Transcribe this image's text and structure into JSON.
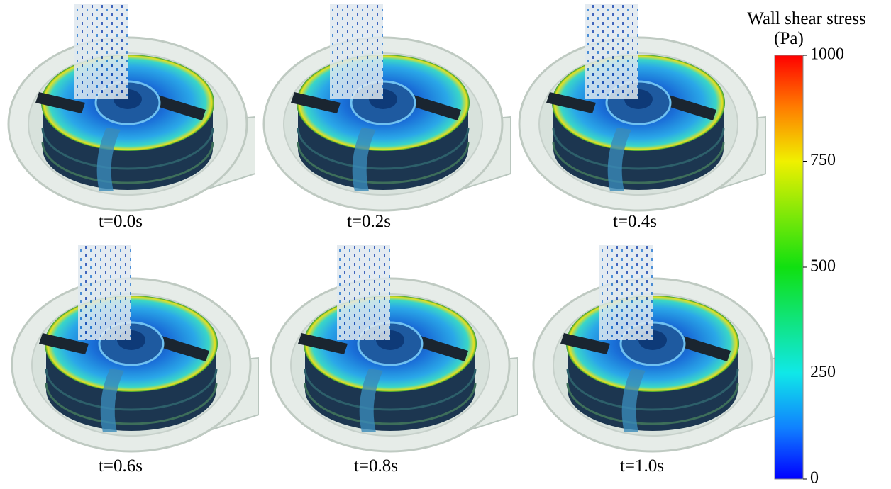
{
  "panels": [
    {
      "label": "t=0.0s"
    },
    {
      "label": "t=0.2s"
    },
    {
      "label": "t=0.4s"
    },
    {
      "label": "t=0.6s"
    },
    {
      "label": "t=0.8s"
    },
    {
      "label": "t=1.0s"
    }
  ],
  "colorbar": {
    "title": "Wall shear stress",
    "unit": "(Pa)",
    "lim": [
      0,
      1000
    ],
    "ticks": [
      0,
      250,
      500,
      750,
      1000
    ]
  }
}
